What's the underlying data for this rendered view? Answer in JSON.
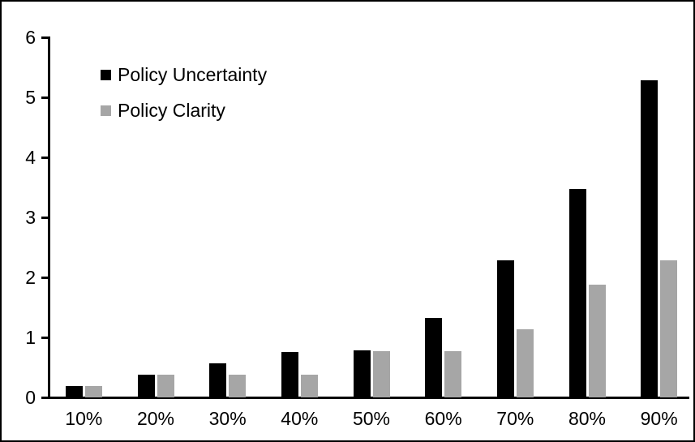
{
  "chart_data": {
    "type": "bar",
    "title": "",
    "xlabel": "",
    "ylabel": "",
    "categories": [
      "10%",
      "20%",
      "30%",
      "40%",
      "50%",
      "60%",
      "70%",
      "80%",
      "90%"
    ],
    "series": [
      {
        "name": "Policy Uncertainty",
        "color": "#000000",
        "values": [
          0.19,
          0.38,
          0.57,
          0.76,
          0.78,
          1.32,
          2.29,
          3.47,
          5.28
        ]
      },
      {
        "name": "Policy Clarity",
        "color": "#a6a6a6",
        "values": [
          0.19,
          0.38,
          0.38,
          0.38,
          0.77,
          0.77,
          1.14,
          1.88,
          2.28
        ]
      }
    ],
    "ylim": [
      0,
      6
    ],
    "yticks": [
      0,
      1,
      2,
      3,
      4,
      5,
      6
    ],
    "grid": false,
    "legend_position": "top-left",
    "axis_color": "#000000",
    "background_color": "#ffffff",
    "frame_border_color": "#000000"
  }
}
